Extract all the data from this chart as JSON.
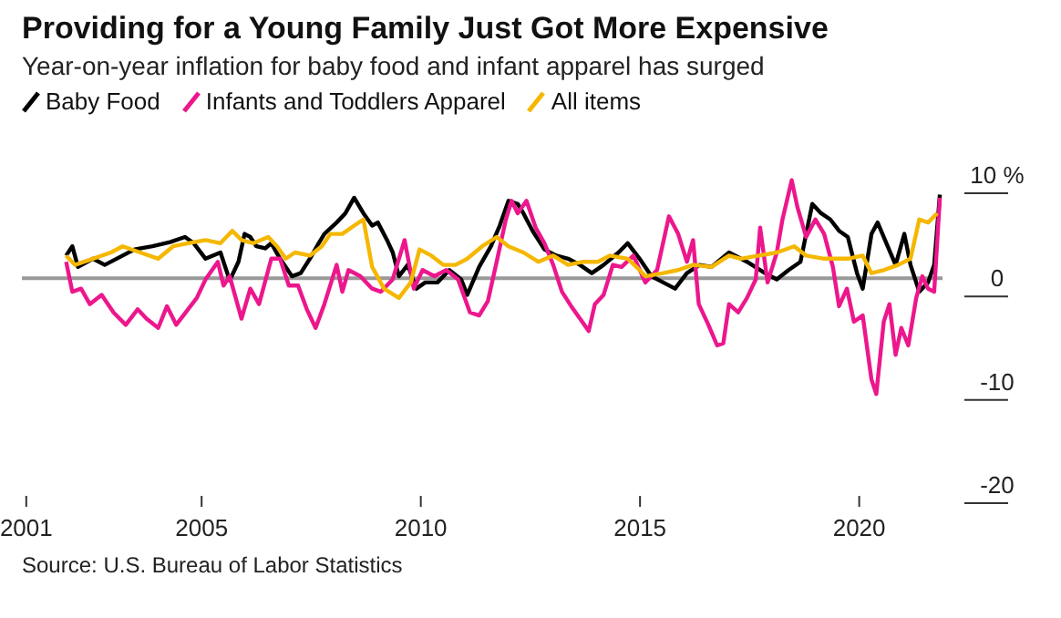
{
  "chart_data": {
    "type": "line",
    "title": "Providing for a Young Family Just Got More Expensive",
    "subtitle": "Year-on-year inflation for baby food and infant apparel has surged",
    "annotations": [
      "Source: U.S. Bureau of Labor Statistics"
    ],
    "legend": "top left",
    "grid": false,
    "marker": "none",
    "line_style": "solid",
    "xlim": [
      2000.9,
      2021.9
    ],
    "xticks": [
      2001,
      2005,
      2010,
      2015,
      2020
    ],
    "ylim": [
      -20,
      10
    ],
    "yticks": [
      -20,
      -10,
      0,
      {
        "value": 10,
        "label": "10 %"
      }
    ],
    "ref_lines": [
      {
        "axis": "y",
        "value": 0,
        "color": "#999999"
      }
    ],
    "series": [
      {
        "name": "Baby Food",
        "color": "#000000",
        "x": [
          2001.91,
          2002.05,
          2002.18,
          2002.52,
          2002.79,
          2003.2,
          2003.47,
          2003.88,
          2004.28,
          2004.62,
          2004.82,
          2005.09,
          2005.43,
          2005.64,
          2005.84,
          2005.98,
          2006.11,
          2006.25,
          2006.45,
          2006.59,
          2006.79,
          2007.06,
          2007.26,
          2007.47,
          2007.67,
          2007.8,
          2008.08,
          2008.28,
          2008.48,
          2008.69,
          2008.89,
          2009.02,
          2009.23,
          2009.36,
          2009.5,
          2009.7,
          2009.9,
          2010.1,
          2010.38,
          2010.65,
          2010.92,
          2011.06,
          2011.33,
          2011.6,
          2011.8,
          2012.0,
          2012.21,
          2012.34,
          2012.55,
          2012.82,
          2013.09,
          2013.36,
          2013.63,
          2013.9,
          2014.17,
          2014.51,
          2014.72,
          2014.99,
          2015.26,
          2015.53,
          2015.8,
          2016.07,
          2016.36,
          2016.63,
          2017.03,
          2017.44,
          2017.85,
          2018.12,
          2018.39,
          2018.66,
          2018.93,
          2019.13,
          2019.34,
          2019.54,
          2019.74,
          2019.95,
          2020.08,
          2020.28,
          2020.42,
          2020.62,
          2020.83,
          2021.03,
          2021.17,
          2021.37,
          2021.57,
          2021.71,
          2021.84
        ],
        "values": [
          2.2,
          3.1,
          1.1,
          1.9,
          1.3,
          2.2,
          2.8,
          3.1,
          3.5,
          4.0,
          3.4,
          1.9,
          2.5,
          -0.2,
          1.6,
          4.3,
          4.0,
          3.1,
          2.9,
          3.4,
          1.9,
          0.2,
          0.5,
          1.9,
          3.4,
          4.3,
          5.4,
          6.3,
          7.8,
          6.3,
          5.1,
          5.4,
          3.7,
          2.5,
          0.2,
          1.3,
          -1.0,
          -0.4,
          -0.4,
          0.8,
          -0.1,
          -1.6,
          1.1,
          3.1,
          5.1,
          7.5,
          7.2,
          6.3,
          4.6,
          2.8,
          2.2,
          1.9,
          1.3,
          0.5,
          1.3,
          2.5,
          3.4,
          1.9,
          0.2,
          -0.4,
          -1.0,
          0.5,
          1.3,
          1.1,
          2.5,
          1.6,
          0.5,
          -0.1,
          0.8,
          1.6,
          7.2,
          6.3,
          5.7,
          4.6,
          4.0,
          0.5,
          -1.0,
          4.3,
          5.4,
          3.4,
          1.3,
          4.3,
          1.3,
          -1.3,
          -0.4,
          1.3,
          8.1
        ]
      },
      {
        "name": "Infants and Toddlers Apparel",
        "color": "#ec178c",
        "x": [
          2001.91,
          2002.05,
          2002.25,
          2002.45,
          2002.72,
          2002.99,
          2003.27,
          2003.54,
          2003.74,
          2004.01,
          2004.21,
          2004.42,
          2004.69,
          2004.89,
          2005.09,
          2005.37,
          2005.5,
          2005.64,
          2005.91,
          2006.11,
          2006.31,
          2006.59,
          2006.79,
          2006.99,
          2007.2,
          2007.4,
          2007.6,
          2007.8,
          2008.08,
          2008.21,
          2008.35,
          2008.62,
          2008.89,
          2009.09,
          2009.36,
          2009.63,
          2009.84,
          2010.04,
          2010.31,
          2010.58,
          2010.85,
          2011.12,
          2011.33,
          2011.53,
          2011.73,
          2011.94,
          2012.07,
          2012.21,
          2012.41,
          2012.62,
          2012.82,
          2013.02,
          2013.22,
          2013.43,
          2013.63,
          2013.83,
          2013.97,
          2014.17,
          2014.38,
          2014.58,
          2014.85,
          2015.12,
          2015.39,
          2015.66,
          2015.87,
          2016.07,
          2016.21,
          2016.34,
          2016.56,
          2016.76,
          2016.9,
          2017.03,
          2017.24,
          2017.44,
          2017.64,
          2017.74,
          2017.91,
          2018.12,
          2018.25,
          2018.46,
          2018.59,
          2018.79,
          2019.0,
          2019.2,
          2019.4,
          2019.54,
          2019.72,
          2019.88,
          2020.08,
          2020.28,
          2020.39,
          2020.56,
          2020.69,
          2020.83,
          2020.96,
          2021.12,
          2021.3,
          2021.44,
          2021.57,
          2021.71,
          2021.84
        ],
        "values": [
          1.6,
          -1.3,
          -1.0,
          -2.5,
          -1.6,
          -3.3,
          -4.5,
          -3.0,
          -3.9,
          -4.8,
          -2.7,
          -4.5,
          -3.0,
          -1.9,
          -0.1,
          1.6,
          -0.7,
          0.2,
          -3.9,
          -1.0,
          -2.5,
          1.9,
          1.9,
          -0.7,
          -0.7,
          -3.0,
          -4.8,
          -2.5,
          1.3,
          -1.3,
          0.8,
          0.2,
          -1.0,
          -1.3,
          -0.1,
          3.7,
          -1.0,
          0.8,
          0.2,
          0.8,
          -0.1,
          -3.3,
          -3.6,
          -2.2,
          1.6,
          5.7,
          7.5,
          6.3,
          7.5,
          4.9,
          3.4,
          1.3,
          -1.3,
          -2.7,
          -3.9,
          -5.1,
          -2.5,
          -1.6,
          1.3,
          1.1,
          2.2,
          -0.4,
          0.8,
          6.0,
          4.3,
          1.6,
          3.7,
          -2.5,
          -4.5,
          -6.5,
          -6.3,
          -2.5,
          -3.3,
          -1.9,
          -0.1,
          4.9,
          -0.4,
          2.5,
          5.7,
          9.5,
          6.9,
          4.0,
          5.7,
          4.3,
          1.1,
          -2.7,
          -1.0,
          -4.2,
          -3.6,
          -9.8,
          -11.2,
          -4.2,
          -2.5,
          -7.4,
          -4.8,
          -6.5,
          -1.9,
          0.2,
          -1.0,
          -1.3,
          7.8
        ]
      },
      {
        "name": "All items",
        "color": "#f5b700",
        "x": [
          2001.91,
          2002.11,
          2002.52,
          2002.93,
          2003.2,
          2003.6,
          2004.01,
          2004.35,
          2004.69,
          2005.09,
          2005.43,
          2005.7,
          2005.91,
          2006.18,
          2006.52,
          2006.72,
          2006.92,
          2007.13,
          2007.47,
          2007.74,
          2007.94,
          2008.21,
          2008.48,
          2008.69,
          2008.89,
          2009.16,
          2009.5,
          2009.77,
          2009.97,
          2010.24,
          2010.51,
          2010.79,
          2011.06,
          2011.4,
          2011.73,
          2012.0,
          2012.34,
          2012.68,
          2013.02,
          2013.36,
          2013.7,
          2014.04,
          2014.31,
          2014.72,
          2014.99,
          2015.12,
          2015.53,
          2015.87,
          2016.21,
          2016.63,
          2017.03,
          2017.3,
          2017.71,
          2018.12,
          2018.52,
          2018.79,
          2019.2,
          2019.74,
          2020.08,
          2020.28,
          2020.56,
          2020.89,
          2021.17,
          2021.37,
          2021.57,
          2021.78
        ],
        "values": [
          2.2,
          1.3,
          1.9,
          2.5,
          3.1,
          2.5,
          1.9,
          3.1,
          3.4,
          3.7,
          3.4,
          4.6,
          3.7,
          3.4,
          4.0,
          3.1,
          1.9,
          2.5,
          2.2,
          3.1,
          4.3,
          4.3,
          5.1,
          5.7,
          1.1,
          -1.0,
          -1.9,
          -0.4,
          2.8,
          2.2,
          1.3,
          1.3,
          1.9,
          3.1,
          4.0,
          3.1,
          2.5,
          1.6,
          2.2,
          1.3,
          1.6,
          1.6,
          2.2,
          1.9,
          0.8,
          0.2,
          0.5,
          0.8,
          1.3,
          1.1,
          2.2,
          1.9,
          2.2,
          2.5,
          3.1,
          2.2,
          1.9,
          1.9,
          2.2,
          0.5,
          0.8,
          1.3,
          1.9,
          5.7,
          5.4,
          6.3
        ]
      }
    ]
  }
}
